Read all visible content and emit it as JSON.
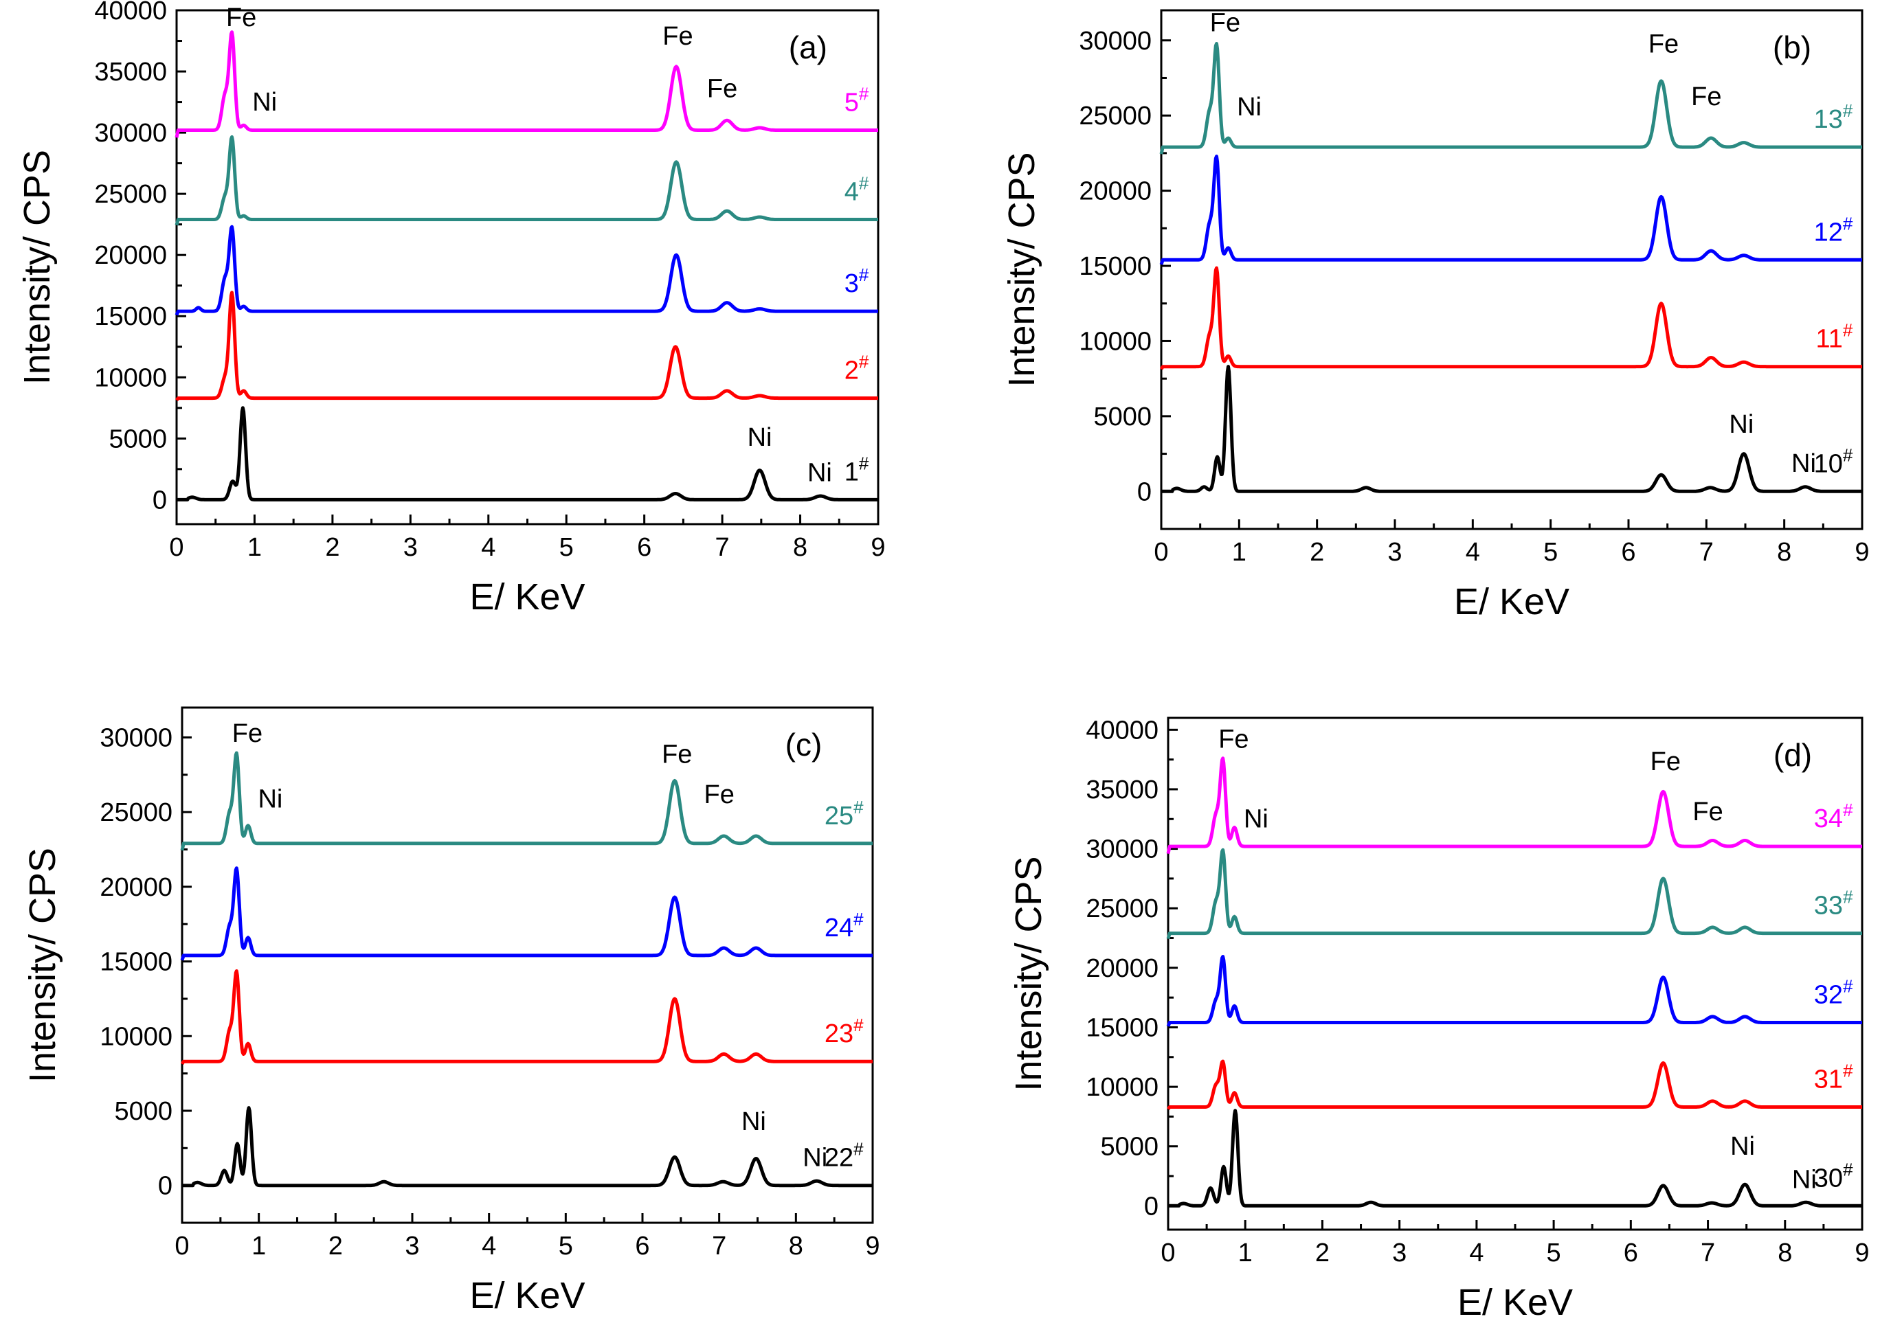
{
  "chart_data": [
    {
      "type": "line",
      "panel": "(a)",
      "xlabel": "E/ KeV",
      "ylabel": "Intensity/ CPS",
      "xlim": [
        0,
        9
      ],
      "ylim": [
        -2000,
        40000
      ],
      "xticks": [
        0,
        1,
        2,
        3,
        4,
        5,
        6,
        7,
        8,
        9
      ],
      "yticks": [
        0,
        5000,
        10000,
        15000,
        20000,
        25000,
        30000,
        35000,
        40000
      ],
      "series": [
        {
          "name": "1#",
          "label": "1",
          "color": "#000000",
          "baseline": 0,
          "peaks": [
            [
              0.2,
              200,
              0.05
            ],
            [
              0.72,
              1500,
              0.04
            ],
            [
              0.85,
              7500,
              0.035
            ],
            [
              6.4,
              500,
              0.07
            ],
            [
              7.48,
              2400,
              0.07
            ],
            [
              8.26,
              300,
              0.07
            ]
          ]
        },
        {
          "name": "2#",
          "label": "2",
          "color": "#ff0000",
          "baseline": 8300,
          "peaks": [
            [
              0.62,
              1600,
              0.04
            ],
            [
              0.71,
              8500,
              0.035
            ],
            [
              0.86,
              600,
              0.035
            ],
            [
              6.4,
              4200,
              0.07
            ],
            [
              7.06,
              600,
              0.07
            ],
            [
              7.48,
              200,
              0.07
            ]
          ]
        },
        {
          "name": "3#",
          "label": "3",
          "color": "#0000ff",
          "baseline": 15400,
          "peaks": [
            [
              0.28,
              300,
              0.03
            ],
            [
              0.62,
              2600,
              0.04
            ],
            [
              0.71,
              6700,
              0.035
            ],
            [
              0.86,
              400,
              0.035
            ],
            [
              6.41,
              4600,
              0.07
            ],
            [
              7.06,
              700,
              0.07
            ],
            [
              7.48,
              200,
              0.07
            ]
          ]
        },
        {
          "name": "4#",
          "label": "4",
          "color": "#2a8a82",
          "baseline": 22900,
          "peaks": [
            [
              0.62,
              1800,
              0.04
            ],
            [
              0.71,
              6600,
              0.035
            ],
            [
              0.86,
              300,
              0.035
            ],
            [
              6.41,
              4700,
              0.07
            ],
            [
              7.06,
              700,
              0.07
            ],
            [
              7.48,
              200,
              0.07
            ]
          ]
        },
        {
          "name": "5#",
          "label": "5",
          "color": "#ff00ff",
          "baseline": 30200,
          "peaks": [
            [
              0.62,
              2800,
              0.04
            ],
            [
              0.71,
              7800,
              0.035
            ],
            [
              0.86,
              400,
              0.035
            ],
            [
              6.41,
              5200,
              0.07
            ],
            [
              7.06,
              800,
              0.07
            ],
            [
              7.48,
              200,
              0.07
            ]
          ]
        }
      ],
      "annotations": [
        {
          "text": "Fe",
          "x": 0.83,
          "y": 38700
        },
        {
          "text": "Ni",
          "x": 1.13,
          "y": 31800
        },
        {
          "text": "Fe",
          "x": 6.43,
          "y": 37200
        },
        {
          "text": "Fe",
          "x": 7.0,
          "y": 32900
        },
        {
          "text": "Ni",
          "x": 7.48,
          "y": 4400
        },
        {
          "text": "Ni",
          "x": 8.25,
          "y": 1500
        }
      ]
    },
    {
      "type": "line",
      "panel": "(b)",
      "xlabel": "E/ KeV",
      "ylabel": "Intensity/ CPS",
      "xlim": [
        0,
        9
      ],
      "ylim": [
        -2500,
        32000
      ],
      "xticks": [
        0,
        1,
        2,
        3,
        4,
        5,
        6,
        7,
        8,
        9
      ],
      "yticks": [
        0,
        5000,
        10000,
        15000,
        20000,
        25000,
        30000
      ],
      "series": [
        {
          "name": "10#",
          "label": "10",
          "color": "#000000",
          "baseline": 0,
          "peaks": [
            [
              0.2,
              200,
              0.05
            ],
            [
              0.55,
              300,
              0.04
            ],
            [
              0.72,
              2300,
              0.035
            ],
            [
              0.86,
              8300,
              0.035
            ],
            [
              2.63,
              250,
              0.06
            ],
            [
              6.42,
              1100,
              0.07
            ],
            [
              7.05,
              250,
              0.07
            ],
            [
              7.48,
              2500,
              0.07
            ],
            [
              8.27,
              300,
              0.07
            ]
          ]
        },
        {
          "name": "11#",
          "label": "11",
          "color": "#ff0000",
          "baseline": 8300,
          "peaks": [
            [
              0.62,
              2000,
              0.04
            ],
            [
              0.71,
              6400,
              0.035
            ],
            [
              0.86,
              700,
              0.035
            ],
            [
              6.42,
              4200,
              0.07
            ],
            [
              7.06,
              600,
              0.07
            ],
            [
              7.48,
              300,
              0.07
            ]
          ]
        },
        {
          "name": "12#",
          "label": "12",
          "color": "#0000ff",
          "baseline": 15400,
          "peaks": [
            [
              0.62,
              2300,
              0.04
            ],
            [
              0.71,
              6700,
              0.035
            ],
            [
              0.86,
              800,
              0.035
            ],
            [
              6.42,
              4200,
              0.07
            ],
            [
              7.06,
              600,
              0.07
            ],
            [
              7.48,
              300,
              0.07
            ]
          ]
        },
        {
          "name": "13#",
          "label": "13",
          "color": "#2a8a82",
          "baseline": 22900,
          "peaks": [
            [
              0.62,
              2300,
              0.04
            ],
            [
              0.71,
              6700,
              0.035
            ],
            [
              0.86,
              600,
              0.035
            ],
            [
              6.42,
              4400,
              0.07
            ],
            [
              7.06,
              600,
              0.07
            ],
            [
              7.48,
              300,
              0.07
            ]
          ]
        }
      ],
      "annotations": [
        {
          "text": "Fe",
          "x": 0.82,
          "y": 30600
        },
        {
          "text": "Ni",
          "x": 1.13,
          "y": 25000
        },
        {
          "text": "Fe",
          "x": 6.45,
          "y": 29200
        },
        {
          "text": "Fe",
          "x": 7.0,
          "y": 25700
        },
        {
          "text": "Ni",
          "x": 7.45,
          "y": 3900
        },
        {
          "text": "Ni",
          "x": 8.25,
          "y": 1300
        }
      ]
    },
    {
      "type": "line",
      "panel": "(c)",
      "xlabel": "E/ KeV",
      "ylabel": "Intensity/ CPS",
      "xlim": [
        0,
        9
      ],
      "ylim": [
        -2500,
        32000
      ],
      "xticks": [
        0,
        1,
        2,
        3,
        4,
        5,
        6,
        7,
        8,
        9
      ],
      "yticks": [
        0,
        5000,
        10000,
        15000,
        20000,
        25000,
        30000
      ],
      "series": [
        {
          "name": "22#",
          "label": "22",
          "color": "#000000",
          "baseline": 0,
          "peaks": [
            [
              0.2,
              200,
              0.05
            ],
            [
              0.55,
              1000,
              0.04
            ],
            [
              0.72,
              2800,
              0.035
            ],
            [
              0.87,
              5200,
              0.035
            ],
            [
              2.63,
              250,
              0.06
            ],
            [
              6.42,
              1900,
              0.07
            ],
            [
              7.05,
              250,
              0.07
            ],
            [
              7.48,
              1800,
              0.07
            ],
            [
              8.27,
              300,
              0.07
            ]
          ]
        },
        {
          "name": "23#",
          "label": "23",
          "color": "#ff0000",
          "baseline": 8300,
          "peaks": [
            [
              0.62,
              2000,
              0.04
            ],
            [
              0.71,
              5900,
              0.035
            ],
            [
              0.86,
              1200,
              0.035
            ],
            [
              6.42,
              4200,
              0.07
            ],
            [
              7.06,
              500,
              0.07
            ],
            [
              7.48,
              500,
              0.07
            ]
          ]
        },
        {
          "name": "24#",
          "label": "24",
          "color": "#0000ff",
          "baseline": 15400,
          "peaks": [
            [
              0.62,
              1900,
              0.04
            ],
            [
              0.71,
              5700,
              0.035
            ],
            [
              0.86,
              1200,
              0.035
            ],
            [
              6.42,
              3900,
              0.07
            ],
            [
              7.06,
              500,
              0.07
            ],
            [
              7.48,
              500,
              0.07
            ]
          ]
        },
        {
          "name": "25#",
          "label": "25",
          "color": "#2a8a82",
          "baseline": 22900,
          "peaks": [
            [
              0.62,
              2000,
              0.04
            ],
            [
              0.71,
              5900,
              0.035
            ],
            [
              0.86,
              1200,
              0.035
            ],
            [
              6.42,
              4200,
              0.07
            ],
            [
              7.06,
              500,
              0.07
            ],
            [
              7.48,
              500,
              0.07
            ]
          ]
        }
      ],
      "annotations": [
        {
          "text": "Fe",
          "x": 0.85,
          "y": 29700
        },
        {
          "text": "Ni",
          "x": 1.15,
          "y": 25300
        },
        {
          "text": "Fe",
          "x": 6.45,
          "y": 28300
        },
        {
          "text": "Fe",
          "x": 7.0,
          "y": 25600
        },
        {
          "text": "Ni",
          "x": 7.45,
          "y": 3700
        },
        {
          "text": "Ni",
          "x": 8.25,
          "y": 1300
        }
      ]
    },
    {
      "type": "line",
      "panel": "(d)",
      "xlabel": "E/ KeV",
      "ylabel": "Intensity/ CPS",
      "xlim": [
        0,
        9
      ],
      "ylim": [
        -2000,
        41000
      ],
      "xticks": [
        0,
        1,
        2,
        3,
        4,
        5,
        6,
        7,
        8,
        9
      ],
      "yticks": [
        0,
        5000,
        10000,
        15000,
        20000,
        25000,
        30000,
        35000,
        40000
      ],
      "series": [
        {
          "name": "30#",
          "label": "30",
          "color": "#000000",
          "baseline": 0,
          "peaks": [
            [
              0.2,
              200,
              0.05
            ],
            [
              0.55,
              1500,
              0.04
            ],
            [
              0.72,
              3300,
              0.035
            ],
            [
              0.87,
              8000,
              0.035
            ],
            [
              2.63,
              300,
              0.06
            ],
            [
              6.42,
              1700,
              0.07
            ],
            [
              7.05,
              250,
              0.07
            ],
            [
              7.48,
              1800,
              0.07
            ],
            [
              8.27,
              300,
              0.07
            ]
          ]
        },
        {
          "name": "31#",
          "label": "31",
          "color": "#ff0000",
          "baseline": 8300,
          "peaks": [
            [
              0.62,
              1800,
              0.04
            ],
            [
              0.71,
              3700,
              0.035
            ],
            [
              0.86,
              1200,
              0.035
            ],
            [
              6.42,
              3700,
              0.07
            ],
            [
              7.06,
              500,
              0.07
            ],
            [
              7.48,
              500,
              0.07
            ]
          ]
        },
        {
          "name": "32#",
          "label": "32",
          "color": "#0000ff",
          "baseline": 15400,
          "peaks": [
            [
              0.62,
              1800,
              0.04
            ],
            [
              0.71,
              5400,
              0.035
            ],
            [
              0.86,
              1400,
              0.035
            ],
            [
              6.42,
              3800,
              0.07
            ],
            [
              7.06,
              500,
              0.07
            ],
            [
              7.48,
              500,
              0.07
            ]
          ]
        },
        {
          "name": "33#",
          "label": "33",
          "color": "#2a8a82",
          "baseline": 22900,
          "peaks": [
            [
              0.62,
              2600,
              0.04
            ],
            [
              0.71,
              6800,
              0.035
            ],
            [
              0.86,
              1400,
              0.035
            ],
            [
              6.42,
              4600,
              0.07
            ],
            [
              7.06,
              500,
              0.07
            ],
            [
              7.48,
              500,
              0.07
            ]
          ]
        },
        {
          "name": "34#",
          "label": "34",
          "color": "#ff00ff",
          "baseline": 30200,
          "peaks": [
            [
              0.62,
              2600,
              0.04
            ],
            [
              0.71,
              7200,
              0.035
            ],
            [
              0.86,
              1600,
              0.035
            ],
            [
              6.42,
              4600,
              0.07
            ],
            [
              7.06,
              500,
              0.07
            ],
            [
              7.48,
              500,
              0.07
            ]
          ]
        }
      ],
      "annotations": [
        {
          "text": "Fe",
          "x": 0.85,
          "y": 38500
        },
        {
          "text": "Ni",
          "x": 1.14,
          "y": 31800
        },
        {
          "text": "Fe",
          "x": 6.45,
          "y": 36600
        },
        {
          "text": "Fe",
          "x": 7.0,
          "y": 32400
        },
        {
          "text": "Ni",
          "x": 7.45,
          "y": 4300
        },
        {
          "text": "Ni",
          "x": 8.25,
          "y": 1500
        }
      ]
    }
  ]
}
